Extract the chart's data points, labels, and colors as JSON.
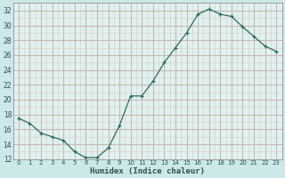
{
  "x": [
    0,
    1,
    2,
    3,
    4,
    5,
    6,
    7,
    8,
    9,
    10,
    11,
    12,
    13,
    14,
    15,
    16,
    17,
    18,
    19,
    20,
    21,
    22,
    23
  ],
  "y": [
    17.5,
    16.8,
    15.5,
    15.0,
    14.5,
    13.0,
    12.2,
    12.2,
    13.5,
    16.5,
    20.5,
    20.5,
    22.5,
    25.0,
    27.0,
    29.0,
    31.5,
    32.2,
    31.5,
    31.2,
    29.8,
    28.5,
    27.2,
    26.5
  ],
  "xlabel": "Humidex (Indice chaleur)",
  "ylim": [
    12,
    33
  ],
  "xlim": [
    -0.5,
    23.5
  ],
  "yticks": [
    12,
    14,
    16,
    18,
    20,
    22,
    24,
    26,
    28,
    30,
    32
  ],
  "xticks": [
    0,
    1,
    2,
    3,
    4,
    5,
    6,
    7,
    8,
    9,
    10,
    11,
    12,
    13,
    14,
    15,
    16,
    17,
    18,
    19,
    20,
    21,
    22,
    23
  ],
  "xtick_labels": [
    "0",
    "1",
    "2",
    "3",
    "4",
    "5",
    "6",
    "7",
    "8",
    "9",
    "10",
    "11",
    "12",
    "13",
    "14",
    "15",
    "16",
    "17",
    "18",
    "19",
    "20",
    "21",
    "22",
    "23"
  ],
  "line_color": "#2d6b5e",
  "marker": "+",
  "bg_color": "#cce8e8",
  "plot_bg_color": "#dff2f0",
  "grid_major_color": "#c8b8b8",
  "grid_minor_color": "#ddd0d0"
}
